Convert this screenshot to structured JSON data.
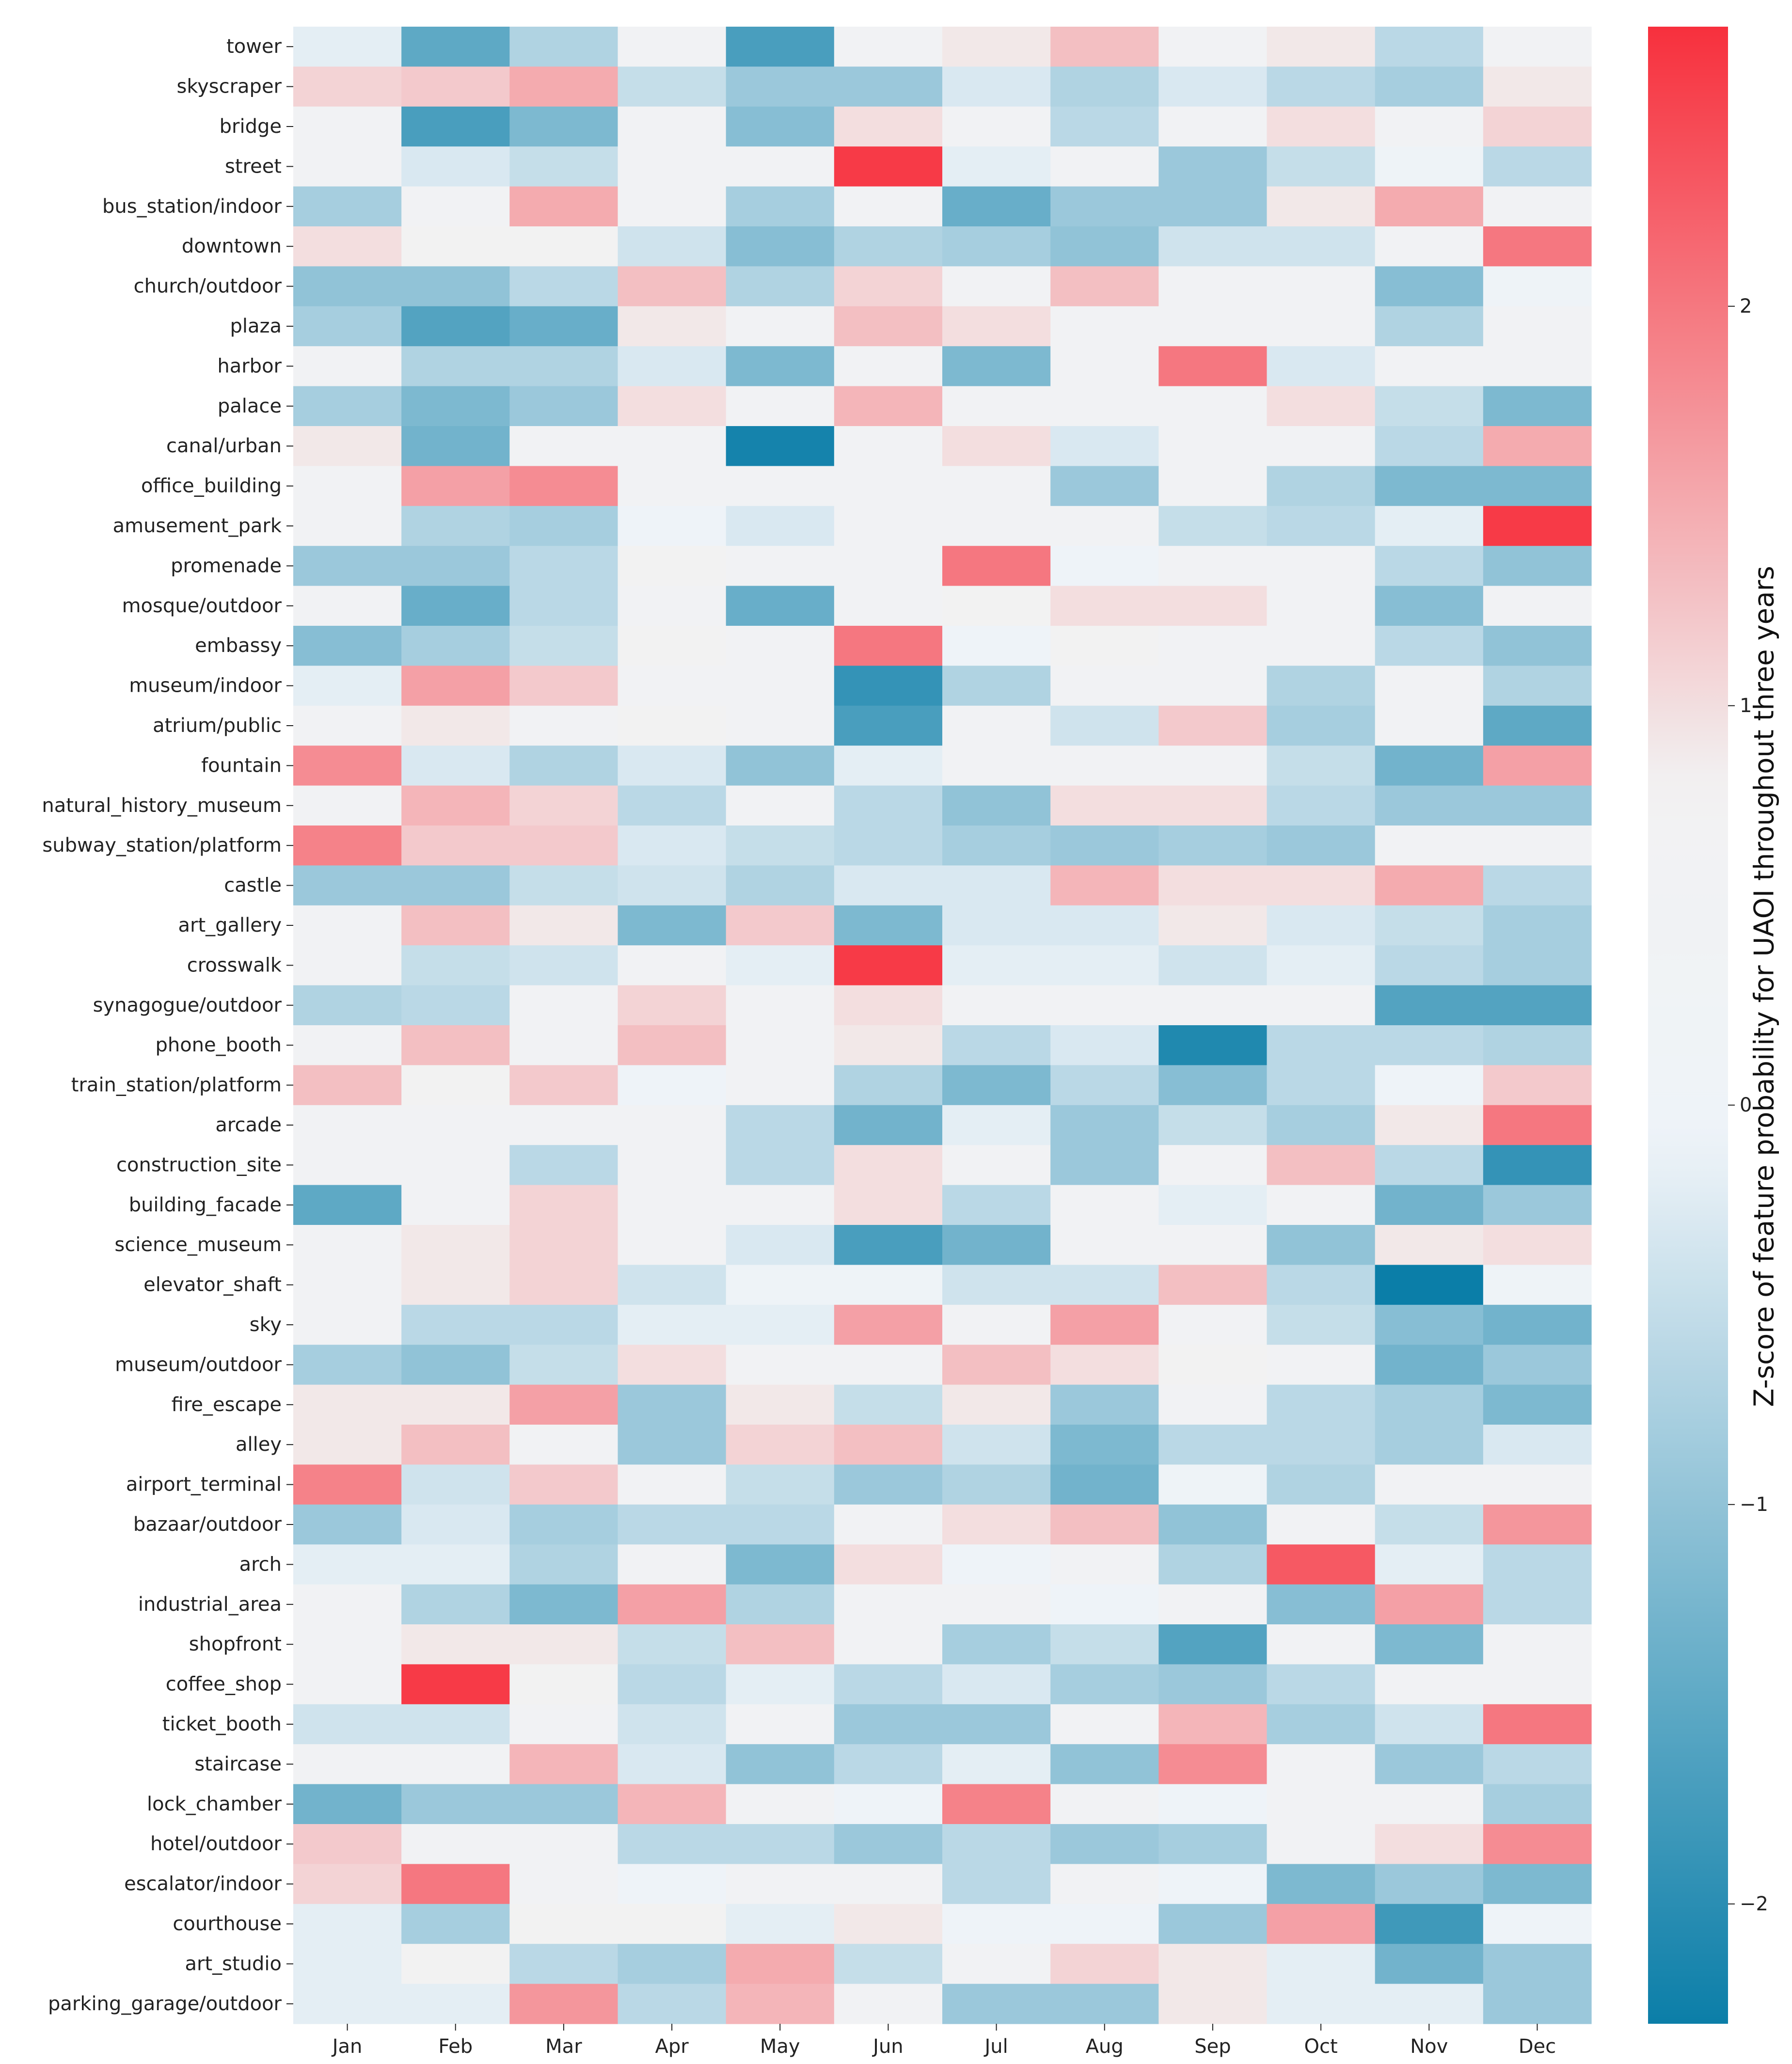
{
  "chart_data": {
    "type": "heatmap",
    "title": "",
    "xlabel": "",
    "ylabel": "",
    "columns": [
      "Jan",
      "Feb",
      "Mar",
      "Apr",
      "May",
      "Jun",
      "Jul",
      "Aug",
      "Sep",
      "Oct",
      "Nov",
      "Dec"
    ],
    "rows": [
      "tower",
      "skyscraper",
      "bridge",
      "street",
      "bus_station/indoor",
      "downtown",
      "church/outdoor",
      "plaza",
      "harbor",
      "palace",
      "canal/urban",
      "office_building",
      "amusement_park",
      "promenade",
      "mosque/outdoor",
      "embassy",
      "museum/indoor",
      "atrium/public",
      "fountain",
      "natural_history_museum",
      "subway_station/platform",
      "castle",
      "art_gallery",
      "crosswalk",
      "synagogue/outdoor",
      "phone_booth",
      "train_station/platform",
      "arcade",
      "construction_site",
      "building_facade",
      "science_museum",
      "elevator_shaft",
      "sky",
      "museum/outdoor",
      "fire_escape",
      "alley",
      "airport_terminal",
      "bazaar/outdoor",
      "arch",
      "industrial_area",
      "shopfront",
      "coffee_shop",
      "ticket_booth",
      "staircase",
      "lock_chamber",
      "hotel/outdoor",
      "escalator/indoor",
      "courthouse",
      "art_studio",
      "parking_garage/outdoor"
    ],
    "values": [
      [
        -0.2,
        -1.5,
        -0.7,
        0.5,
        -1.7,
        0.5,
        0.9,
        1.3,
        0.5,
        0.9,
        -0.6,
        0.5
      ],
      [
        1.1,
        1.2,
        1.5,
        -0.5,
        -0.9,
        -0.9,
        -0.3,
        -0.7,
        -0.3,
        -0.6,
        -0.8,
        0.9
      ],
      [
        0.5,
        -1.7,
        -1.2,
        0.5,
        -1.1,
        1.0,
        0.5,
        -0.6,
        0.5,
        1.0,
        0.5,
        1.1
      ],
      [
        0.5,
        -0.3,
        -0.5,
        0.5,
        0.5,
        2.6,
        -0.2,
        0.5,
        -0.9,
        -0.5,
        0.0,
        -0.6
      ],
      [
        -0.8,
        0.5,
        1.5,
        0.5,
        -0.8,
        0.5,
        -1.4,
        -0.9,
        -0.9,
        0.9,
        1.5,
        0.5
      ],
      [
        1.0,
        0.8,
        0.8,
        -0.4,
        -1.1,
        -0.7,
        -0.8,
        -1.0,
        -0.4,
        -0.4,
        0.5,
        2.0
      ],
      [
        -1.0,
        -1.0,
        -0.6,
        1.3,
        -0.7,
        1.1,
        0.5,
        1.3,
        0.5,
        0.5,
        -1.1,
        0.0
      ],
      [
        -0.8,
        -1.6,
        -1.4,
        0.9,
        0.5,
        1.3,
        1.0,
        0.5,
        0.5,
        0.5,
        -0.7,
        0.5
      ],
      [
        0.5,
        -0.7,
        -0.7,
        -0.3,
        -1.2,
        0.5,
        -1.2,
        0.5,
        2.0,
        -0.3,
        0.5,
        0.5
      ],
      [
        -0.8,
        -1.2,
        -0.9,
        1.0,
        0.5,
        1.4,
        0.5,
        0.5,
        0.5,
        1.0,
        -0.5,
        -1.2
      ],
      [
        0.9,
        -1.3,
        0.5,
        0.5,
        -2.2,
        0.5,
        1.0,
        -0.3,
        0.5,
        0.5,
        -0.6,
        1.5
      ],
      [
        0.5,
        1.6,
        1.8,
        0.5,
        0.5,
        0.5,
        0.5,
        -0.9,
        0.5,
        -0.7,
        -1.2,
        -1.2
      ],
      [
        0.5,
        -0.7,
        -0.8,
        -0.1,
        -0.3,
        0.5,
        0.5,
        0.5,
        -0.5,
        -0.6,
        -0.2,
        2.6
      ],
      [
        -0.9,
        -0.9,
        -0.6,
        0.8,
        0.5,
        0.5,
        2.0,
        -0.1,
        0.5,
        0.5,
        -0.6,
        -1.0
      ],
      [
        0.5,
        -1.4,
        -0.6,
        0.5,
        -1.4,
        0.5,
        0.8,
        1.0,
        1.0,
        0.5,
        -1.1,
        0.5
      ],
      [
        -1.1,
        -0.8,
        -0.5,
        0.8,
        0.5,
        2.0,
        -0.1,
        0.8,
        0.5,
        0.5,
        -0.6,
        -1.0
      ],
      [
        -0.2,
        1.6,
        1.2,
        0.5,
        0.5,
        -1.9,
        -0.7,
        0.5,
        0.5,
        -0.7,
        0.5,
        -0.7
      ],
      [
        0.5,
        0.9,
        0.5,
        0.8,
        0.5,
        -1.7,
        0.5,
        -0.4,
        1.2,
        -0.8,
        0.5,
        -1.5
      ],
      [
        1.8,
        -0.3,
        -0.7,
        -0.3,
        -1.0,
        -0.2,
        0.5,
        0.5,
        0.5,
        -0.5,
        -1.3,
        1.6
      ],
      [
        0.5,
        1.4,
        1.1,
        -0.6,
        0.5,
        -0.6,
        -1.0,
        1.0,
        1.0,
        -0.6,
        -0.9,
        -0.9
      ],
      [
        1.9,
        1.2,
        1.2,
        -0.3,
        -0.5,
        -0.6,
        -0.8,
        -0.9,
        -0.8,
        -0.9,
        0.5,
        0.5
      ],
      [
        -0.9,
        -0.9,
        -0.5,
        -0.4,
        -0.7,
        -0.3,
        -0.3,
        1.4,
        1.0,
        1.0,
        1.5,
        -0.6
      ],
      [
        0.5,
        1.3,
        0.9,
        -1.2,
        1.2,
        -1.2,
        -0.3,
        -0.3,
        0.9,
        -0.3,
        -0.5,
        -0.8
      ],
      [
        0.5,
        -0.5,
        -0.4,
        0.5,
        -0.2,
        2.6,
        -0.2,
        -0.2,
        -0.4,
        -0.2,
        -0.6,
        -0.8
      ],
      [
        -0.7,
        -0.6,
        0.5,
        1.1,
        0.5,
        1.0,
        0.5,
        0.5,
        0.5,
        0.5,
        -1.6,
        -1.6
      ],
      [
        0.5,
        1.3,
        0.5,
        1.3,
        0.5,
        0.9,
        -0.6,
        -0.3,
        -2.1,
        -0.6,
        -0.6,
        -0.7
      ],
      [
        1.3,
        0.8,
        1.2,
        -0.1,
        0.5,
        -0.7,
        -1.2,
        -0.6,
        -1.1,
        -0.6,
        -0.1,
        1.2
      ],
      [
        0.5,
        0.5,
        0.5,
        0.5,
        -0.6,
        -1.3,
        -0.2,
        -0.9,
        -0.5,
        -0.8,
        0.9,
        2.0
      ],
      [
        0.5,
        0.5,
        -0.6,
        0.5,
        -0.6,
        1.0,
        0.5,
        -0.9,
        0.5,
        1.3,
        -0.6,
        -1.9
      ],
      [
        -1.5,
        0.5,
        1.1,
        0.5,
        0.5,
        1.0,
        -0.6,
        0.5,
        -0.2,
        0.5,
        -1.3,
        -0.9
      ],
      [
        0.5,
        0.9,
        1.1,
        0.5,
        -0.3,
        -1.7,
        -1.3,
        0.5,
        0.5,
        -1.0,
        0.9,
        1.0
      ],
      [
        0.5,
        0.9,
        1.1,
        -0.4,
        0.0,
        0.0,
        -0.4,
        -0.4,
        1.3,
        -0.6,
        -2.3,
        0.0
      ],
      [
        0.5,
        -0.6,
        -0.6,
        -0.2,
        -0.2,
        1.6,
        0.5,
        1.6,
        0.5,
        -0.5,
        -1.1,
        -1.3
      ],
      [
        -0.8,
        -1.0,
        -0.5,
        1.0,
        0.5,
        0.5,
        1.3,
        1.0,
        0.8,
        0.5,
        -1.3,
        -0.9
      ],
      [
        0.9,
        0.9,
        1.6,
        -0.9,
        0.9,
        -0.5,
        0.9,
        -0.9,
        0.5,
        -0.6,
        -0.8,
        -1.2
      ],
      [
        0.9,
        1.3,
        0.5,
        -0.9,
        1.1,
        1.3,
        -0.4,
        -1.2,
        -0.6,
        -0.6,
        -0.8,
        -0.3
      ],
      [
        1.9,
        -0.4,
        1.2,
        0.5,
        -0.5,
        -0.9,
        -0.7,
        -1.3,
        0.0,
        -0.7,
        0.5,
        0.5
      ],
      [
        -0.9,
        -0.3,
        -0.8,
        -0.6,
        -0.6,
        0.5,
        1.0,
        1.3,
        -1.0,
        0.5,
        -0.5,
        1.7
      ],
      [
        -0.2,
        -0.2,
        -0.7,
        0.5,
        -1.2,
        1.0,
        -0.1,
        0.5,
        -0.7,
        2.3,
        -0.2,
        -0.6
      ],
      [
        0.5,
        -0.7,
        -1.2,
        1.6,
        -0.7,
        0.5,
        0.5,
        -0.1,
        0.5,
        -1.1,
        1.6,
        -0.6
      ],
      [
        0.5,
        0.9,
        0.9,
        -0.5,
        1.3,
        0.5,
        -0.8,
        -0.5,
        -1.6,
        0.5,
        -1.2,
        0.5
      ],
      [
        0.5,
        2.6,
        0.8,
        -0.6,
        -0.2,
        -0.6,
        -0.3,
        -0.8,
        -0.9,
        -0.6,
        0.5,
        0.5
      ],
      [
        -0.4,
        -0.4,
        0.5,
        -0.4,
        0.5,
        -0.9,
        -0.9,
        0.5,
        1.4,
        -0.8,
        -0.4,
        2.0
      ],
      [
        0.5,
        0.5,
        1.4,
        -0.3,
        -1.0,
        -0.6,
        -0.2,
        -1.0,
        1.8,
        0.5,
        -0.9,
        -0.6
      ],
      [
        -1.3,
        -0.9,
        -0.9,
        1.4,
        0.5,
        -0.1,
        1.9,
        0.5,
        -0.1,
        0.5,
        0.5,
        -0.8
      ],
      [
        1.2,
        0.5,
        0.5,
        -0.6,
        -0.6,
        -0.9,
        -0.6,
        -0.9,
        -0.8,
        0.5,
        1.0,
        1.8
      ],
      [
        1.1,
        2.0,
        0.5,
        -0.1,
        0.5,
        0.5,
        -0.6,
        0.5,
        -0.1,
        -1.2,
        -0.9,
        -1.2
      ],
      [
        -0.2,
        -0.8,
        0.8,
        0.8,
        -0.2,
        0.9,
        -0.1,
        -0.1,
        -0.9,
        1.6,
        -1.8,
        -0.1
      ],
      [
        -0.2,
        0.8,
        -0.6,
        -0.8,
        1.5,
        -0.5,
        0.5,
        1.1,
        0.9,
        -0.2,
        -1.3,
        -0.9
      ],
      [
        -0.2,
        -0.2,
        1.7,
        -0.6,
        1.4,
        0.5,
        -0.9,
        -0.9,
        0.9,
        -0.2,
        -0.2,
        -0.9
      ]
    ],
    "vmin": -2.3,
    "vmax": 2.7,
    "colormap": {
      "negative": "#0b7ea8",
      "neutral_low": "#eef3f8",
      "neutral_high": "#f2f2f2",
      "positive": "#f7303d",
      "neutral_zone": [
        -0.1,
        0.8
      ]
    },
    "colorbar": {
      "label": "Z-score of feature probability for UAOI throughout three years",
      "ticks": [
        {
          "value": -2,
          "label": "−2"
        },
        {
          "value": -1,
          "label": "−1"
        },
        {
          "value": 0,
          "label": "0"
        },
        {
          "value": 1,
          "label": "1"
        },
        {
          "value": 2,
          "label": "2"
        }
      ]
    }
  }
}
